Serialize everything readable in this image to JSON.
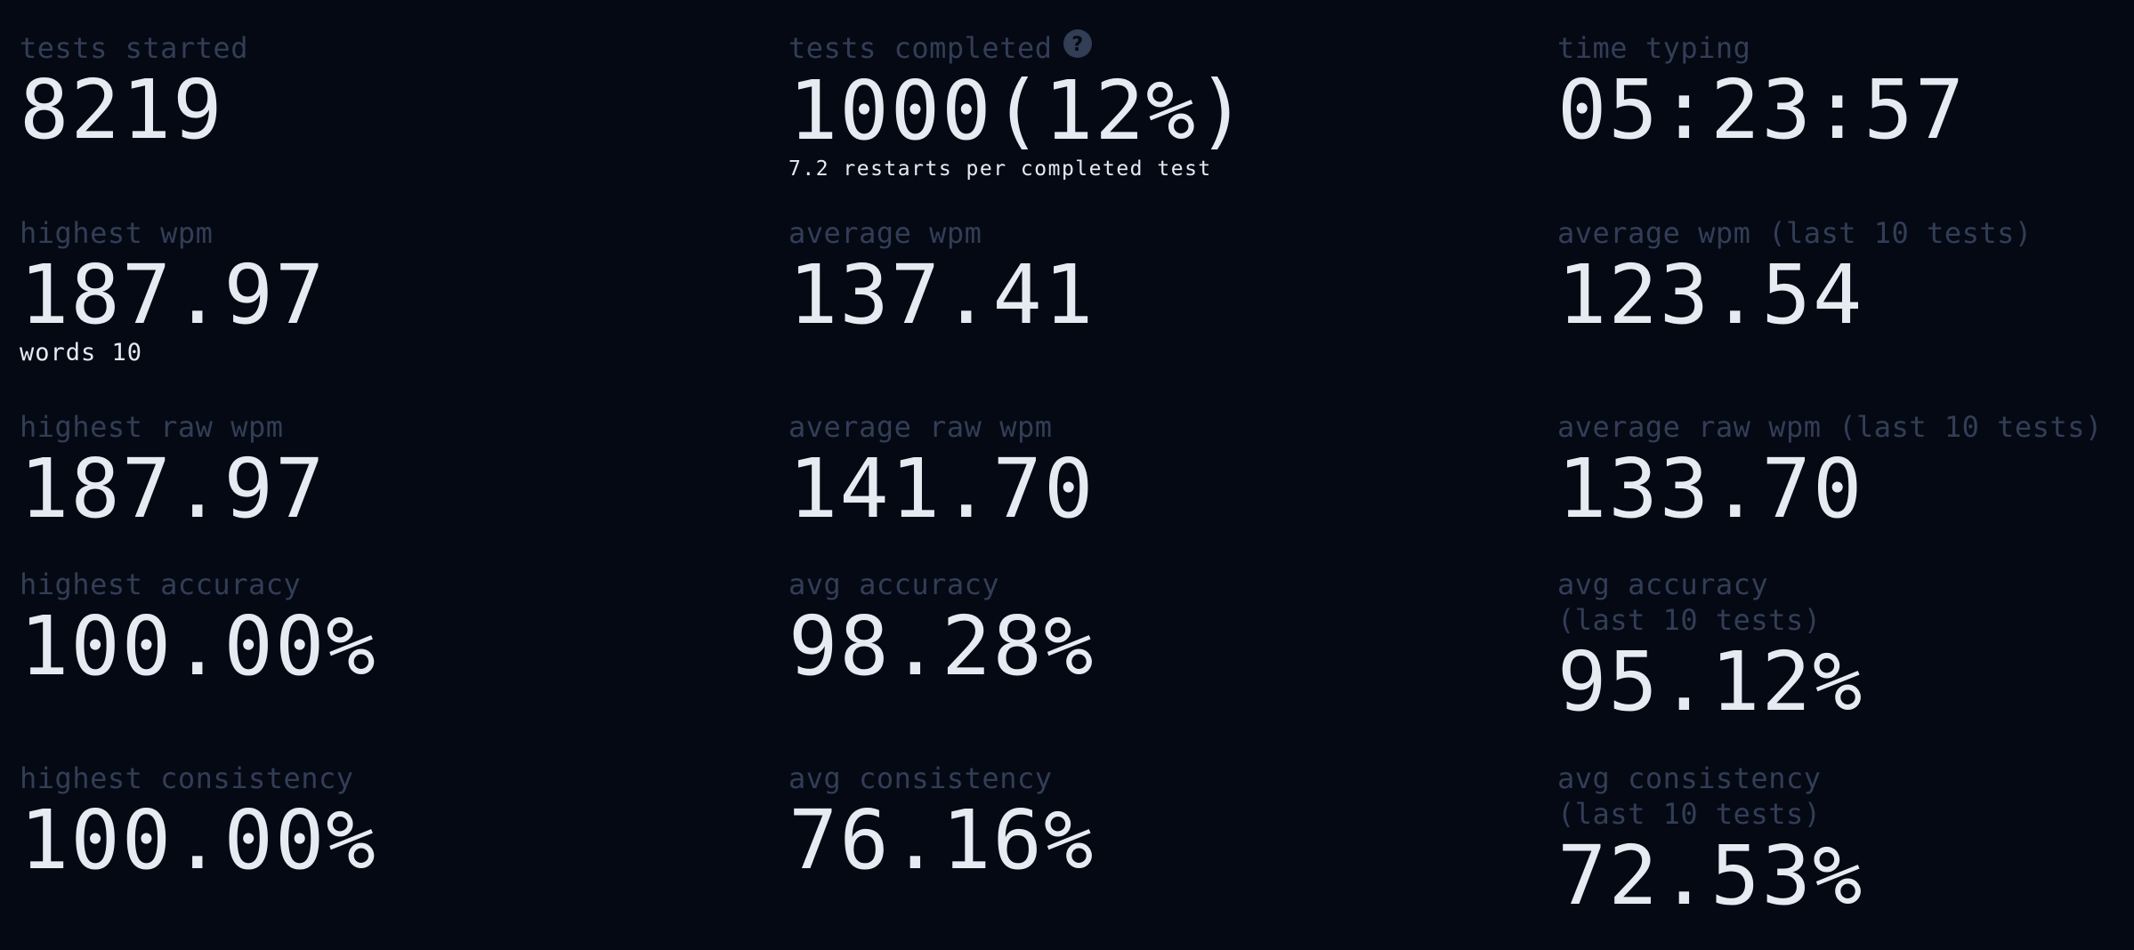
{
  "colors": {
    "background": "#050914",
    "label": "#323e56",
    "value": "#e6ebf2"
  },
  "stats": {
    "tests_started": {
      "label": "tests started",
      "value": "8219"
    },
    "tests_completed": {
      "label": "tests completed",
      "value": "1000(12%)",
      "sub": "7.2 restarts per completed test",
      "icon": "help-circle-icon"
    },
    "time_typing": {
      "label": "time typing",
      "value": "05:23:57"
    },
    "highest_wpm": {
      "label": "highest wpm",
      "value": "187.97",
      "sub": "words 10"
    },
    "average_wpm": {
      "label": "average wpm",
      "value": "137.41"
    },
    "average_wpm_last10": {
      "label": "average wpm (last 10 tests)",
      "value": "123.54"
    },
    "highest_raw_wpm": {
      "label": "highest raw wpm",
      "value": "187.97"
    },
    "average_raw_wpm": {
      "label": "average raw wpm",
      "value": "141.70"
    },
    "average_raw_wpm_last10": {
      "label": "average raw wpm (last 10 tests)",
      "value": "133.70"
    },
    "highest_accuracy": {
      "label": "highest accuracy",
      "value": "100.00%"
    },
    "avg_accuracy": {
      "label": "avg accuracy",
      "value": "98.28%"
    },
    "avg_accuracy_last10": {
      "label_line1": "avg accuracy",
      "label_line2": "(last 10 tests)",
      "value": "95.12%"
    },
    "highest_consistency": {
      "label": "highest consistency",
      "value": "100.00%"
    },
    "avg_consistency": {
      "label": "avg consistency",
      "value": "76.16%"
    },
    "avg_consistency_last10": {
      "label_line1": "avg consistency",
      "label_line2": "(last 10 tests)",
      "value": "72.53%"
    }
  }
}
